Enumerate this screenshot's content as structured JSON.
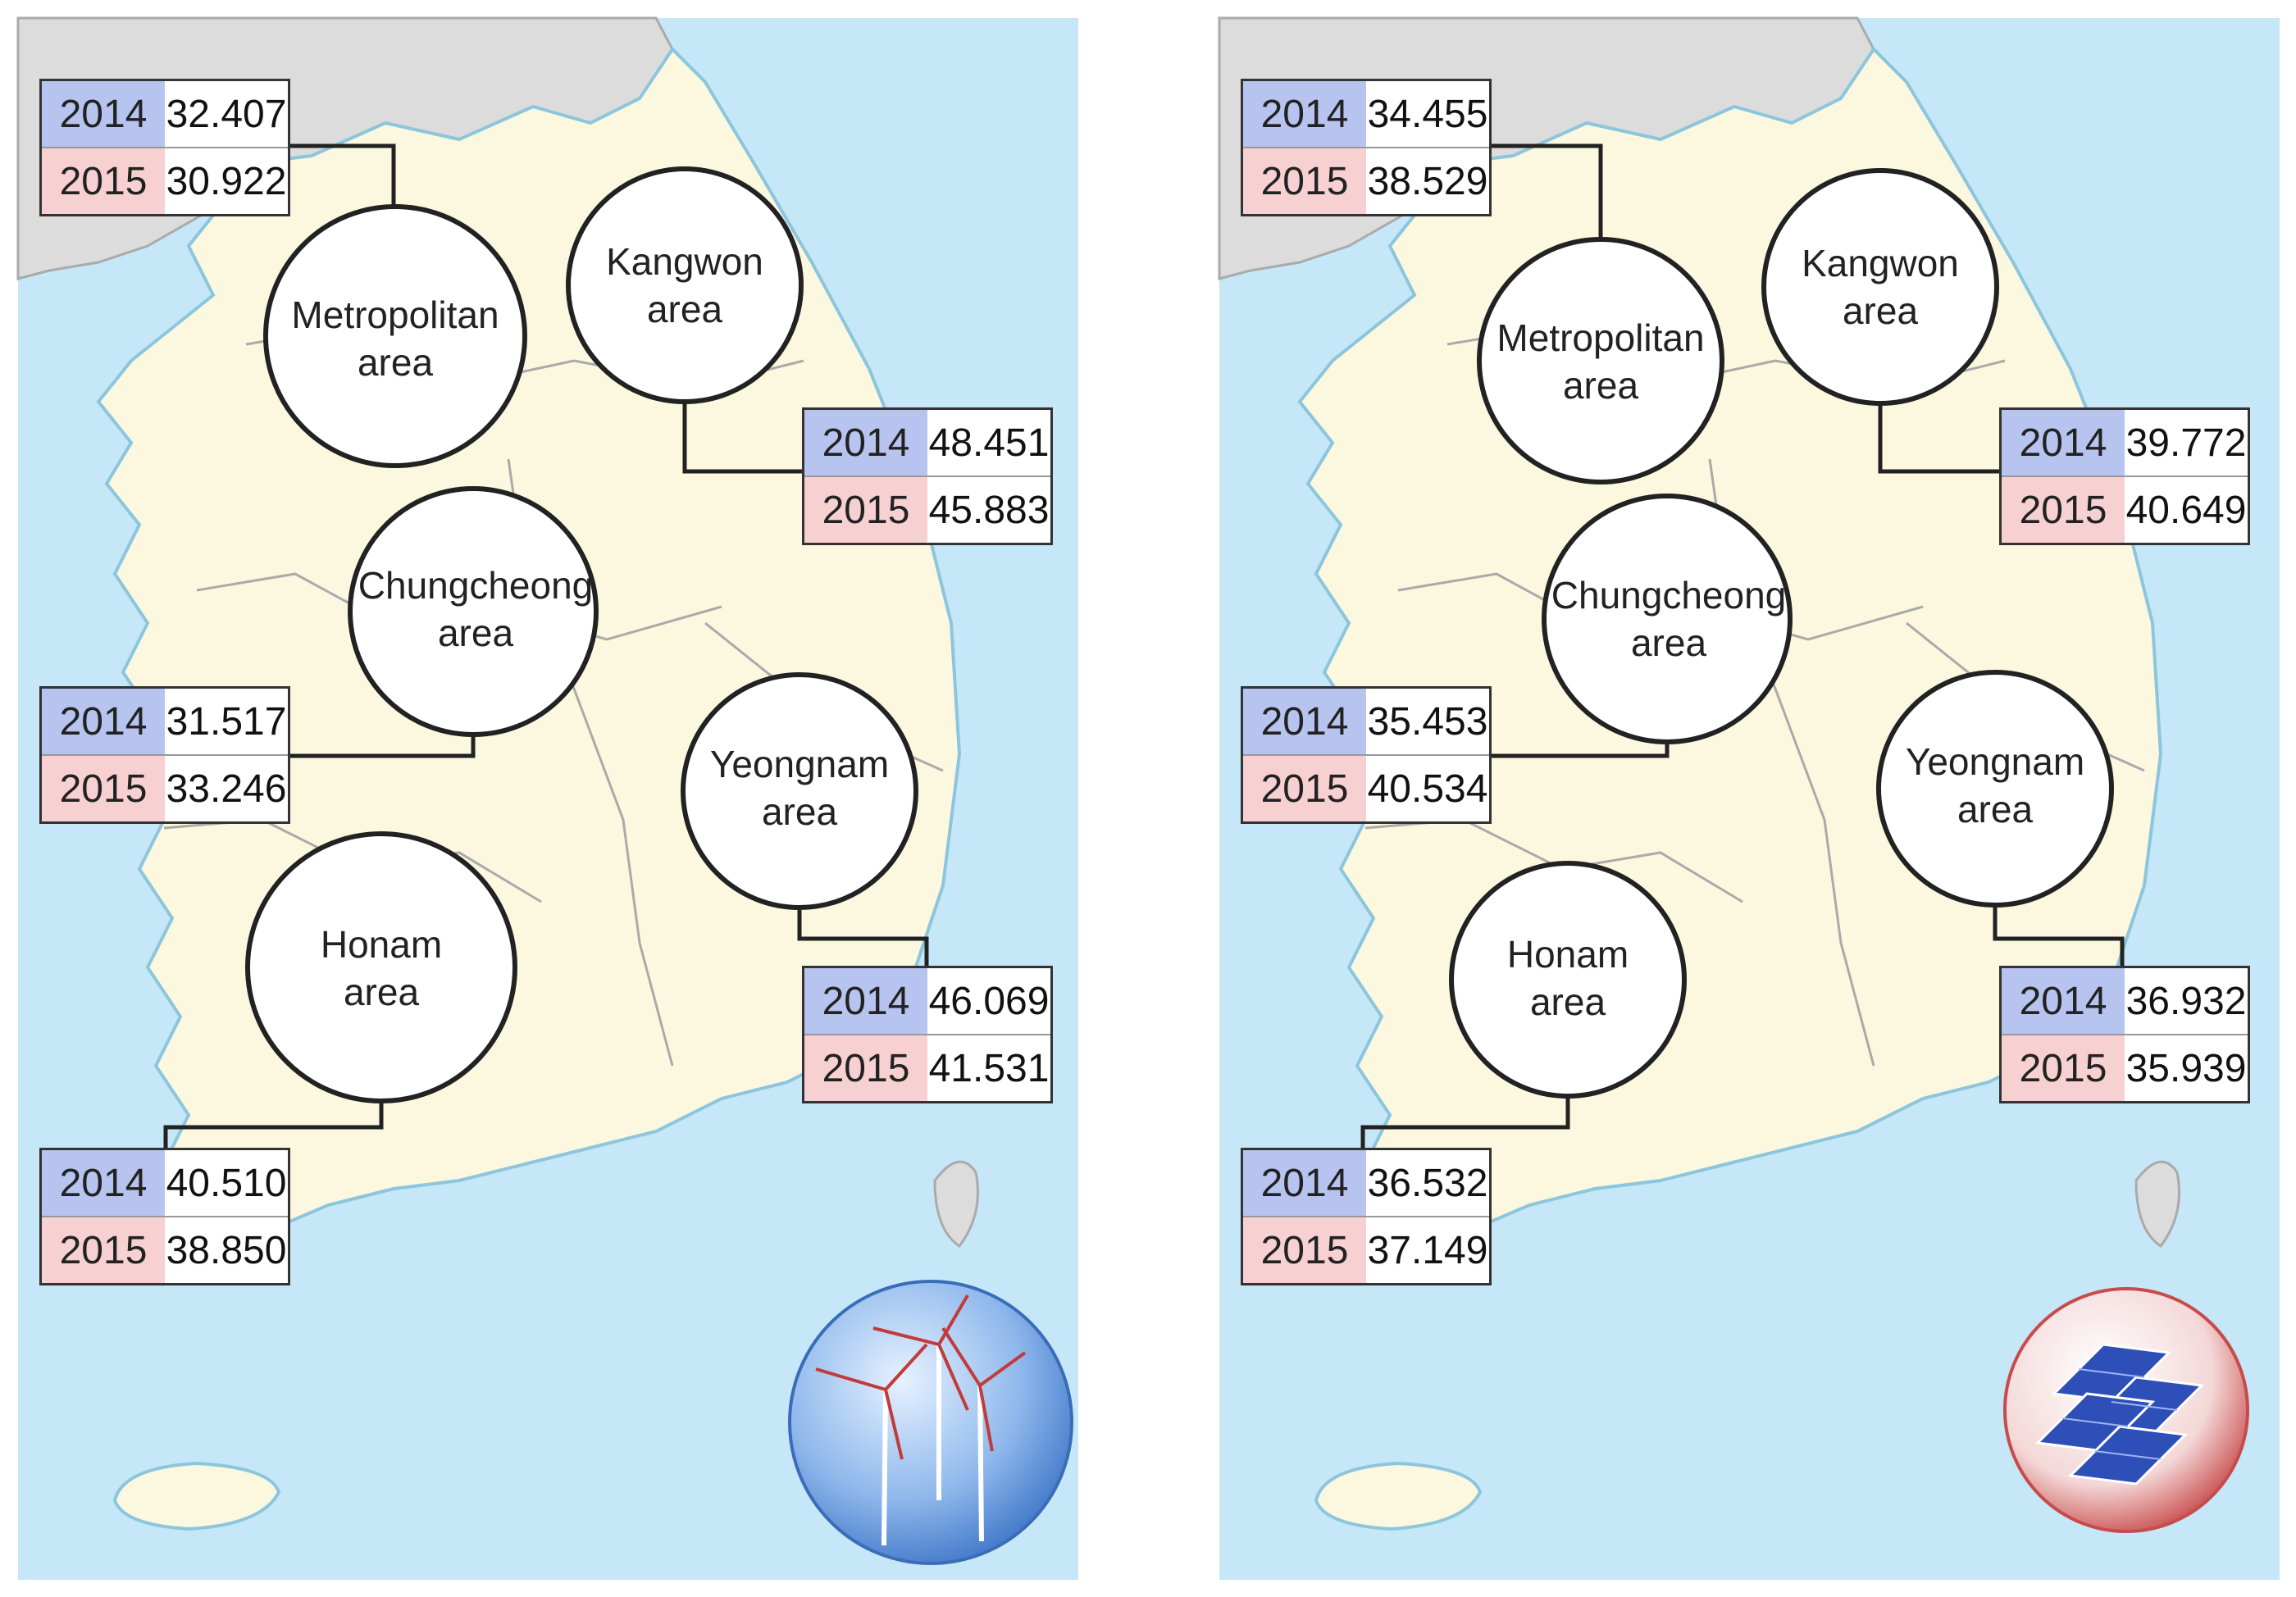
{
  "colors": {
    "sea": "#c5e7f7",
    "land": "#fbf8df",
    "north": "#dcdcdc",
    "border": "#aaaaaa",
    "year_a": "#b8c4f0",
    "year_b": "#f7d0d2"
  },
  "panels": [
    {
      "icon": "wind-turbine-icon",
      "regions": [
        {
          "name_line1": "Metropolitan",
          "name_line2": "area",
          "year_a": "2014",
          "value_a": "32.407",
          "year_b": "2015",
          "value_b": "30.922"
        },
        {
          "name_line1": "Kangwon",
          "name_line2": "area",
          "year_a": "2014",
          "value_a": "48.451",
          "year_b": "2015",
          "value_b": "45.883"
        },
        {
          "name_line1": "Chungcheong",
          "name_line2": "area",
          "year_a": "2014",
          "value_a": "31.517",
          "year_b": "2015",
          "value_b": "33.246"
        },
        {
          "name_line1": "Yeongnam",
          "name_line2": "area",
          "year_a": "2014",
          "value_a": "46.069",
          "year_b": "2015",
          "value_b": "41.531"
        },
        {
          "name_line1": "Honam",
          "name_line2": "area",
          "year_a": "2014",
          "value_a": "40.510",
          "year_b": "2015",
          "value_b": "38.850"
        }
      ]
    },
    {
      "icon": "solar-panel-icon",
      "regions": [
        {
          "name_line1": "Metropolitan",
          "name_line2": "area",
          "year_a": "2014",
          "value_a": "34.455",
          "year_b": "2015",
          "value_b": "38.529"
        },
        {
          "name_line1": "Kangwon",
          "name_line2": "area",
          "year_a": "2014",
          "value_a": "39.772",
          "year_b": "2015",
          "value_b": "40.649"
        },
        {
          "name_line1": "Chungcheong",
          "name_line2": "area",
          "year_a": "2014",
          "value_a": "35.453",
          "year_b": "2015",
          "value_b": "40.534"
        },
        {
          "name_line1": "Yeongnam",
          "name_line2": "area",
          "year_a": "2014",
          "value_a": "36.932",
          "year_b": "2015",
          "value_b": "35.939"
        },
        {
          "name_line1": "Honam",
          "name_line2": "area",
          "year_a": "2014",
          "value_a": "36.532",
          "year_b": "2015",
          "value_b": "37.149"
        }
      ]
    }
  ]
}
